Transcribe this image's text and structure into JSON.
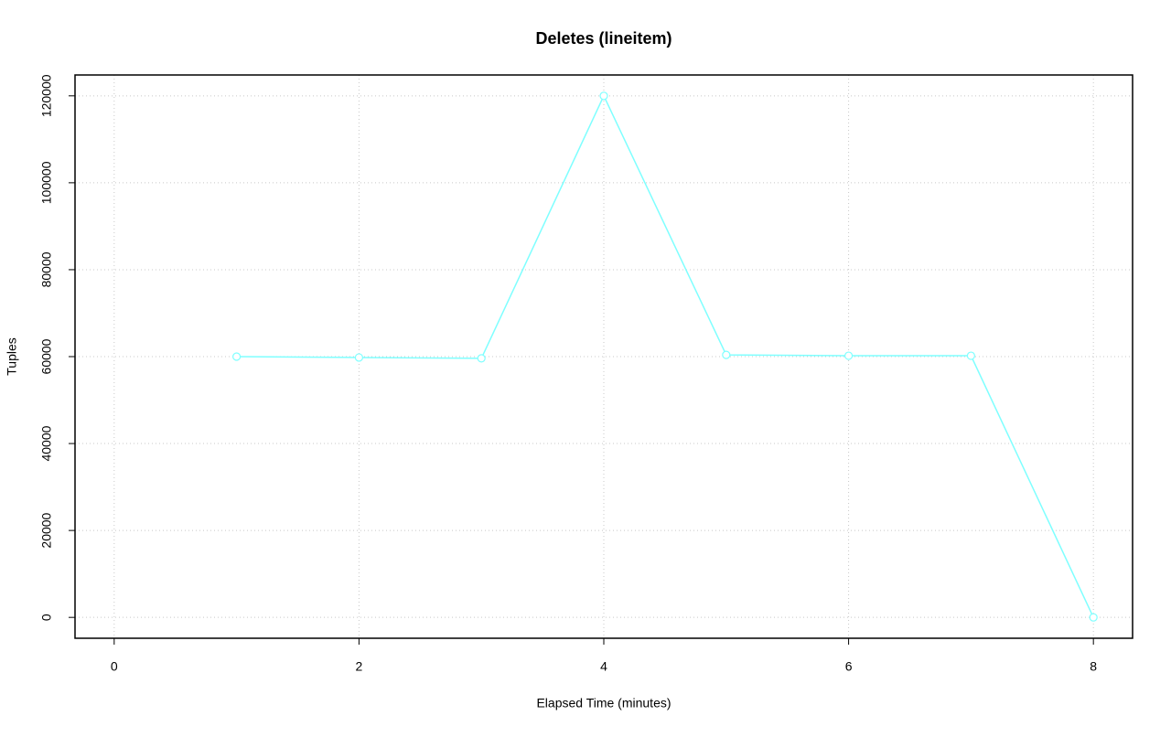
{
  "chart_data": {
    "type": "line",
    "title": "Deletes (lineitem)",
    "x_label": "Elapsed Time (minutes)",
    "y_label": "Tuples",
    "series": [
      {
        "name": "Tuples",
        "color": "#7fffff",
        "x": [
          1,
          2,
          3,
          4,
          5,
          6,
          7,
          8
        ],
        "values": [
          60000,
          59800,
          59600,
          120000,
          60400,
          60200,
          60200,
          0
        ]
      }
    ],
    "xlim": [
      -0.32,
      8.32
    ],
    "xticks": [
      0,
      2,
      4,
      6,
      8
    ],
    "ylim": [
      -4800,
      124800
    ],
    "yticks": [
      0,
      20000,
      40000,
      60000,
      80000,
      100000,
      120000
    ],
    "grid": true
  }
}
